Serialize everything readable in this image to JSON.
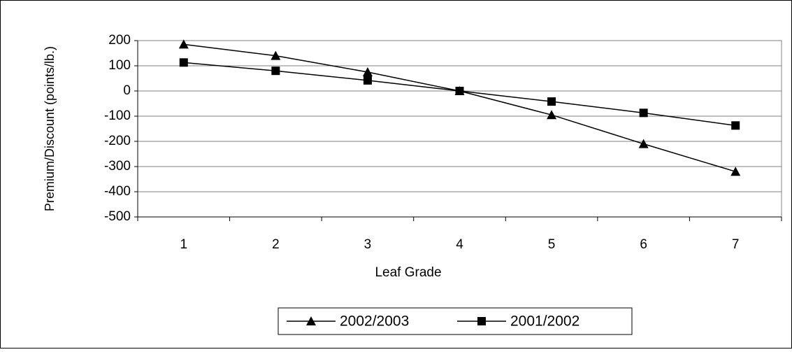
{
  "chart_data": {
    "type": "line",
    "x_label": "Leaf Grade",
    "y_label": "Premium/Discount (points/lb.)",
    "categories": [
      "1",
      "2",
      "3",
      "4",
      "5",
      "6",
      "7"
    ],
    "series": [
      {
        "name": "2002/2003",
        "color": "#000000",
        "marker": "triangle",
        "values": [
          185,
          140,
          75,
          0,
          -95,
          -210,
          -320
        ]
      },
      {
        "name": "2001/2002",
        "color": "#000000",
        "marker": "square",
        "values": [
          113,
          80,
          42,
          0,
          -42,
          -87,
          -137
        ]
      }
    ],
    "ylim": [
      -500,
      200
    ],
    "yticks": [
      200,
      100,
      0,
      -100,
      -200,
      -300,
      -400,
      -500
    ],
    "grid": true
  }
}
